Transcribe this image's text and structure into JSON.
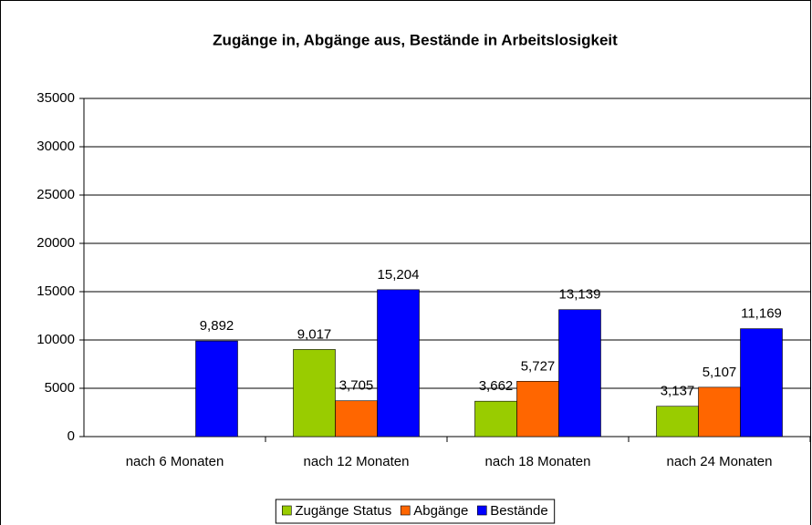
{
  "chart_data": {
    "type": "bar",
    "title": "Zugänge in, Abgänge aus, Bestände in Arbeitslosigkeit",
    "categories": [
      "nach 6 Monaten",
      "nach 12 Monaten",
      "nach 18 Monaten",
      "nach 24 Monaten"
    ],
    "series": [
      {
        "name": "Zugänge Status",
        "color": "#99cc00",
        "values": [
          null,
          9017,
          3662,
          3137
        ],
        "value_labels": [
          null,
          "9,017",
          "3,662",
          "3,137"
        ]
      },
      {
        "name": "Abgänge",
        "color": "#ff6600",
        "values": [
          null,
          3705,
          5727,
          5107
        ],
        "value_labels": [
          null,
          "3,705",
          "5,727",
          "5,107"
        ]
      },
      {
        "name": "Bestände",
        "color": "#0000ff",
        "values": [
          9892,
          15204,
          13139,
          11169
        ],
        "value_labels": [
          "9,892",
          "15,204",
          "13,139",
          "11,169"
        ]
      }
    ],
    "ylim": [
      0,
      35000
    ],
    "yticks": [
      0,
      5000,
      10000,
      15000,
      20000,
      25000,
      30000,
      35000
    ],
    "grid": true,
    "legend": "bottom"
  }
}
